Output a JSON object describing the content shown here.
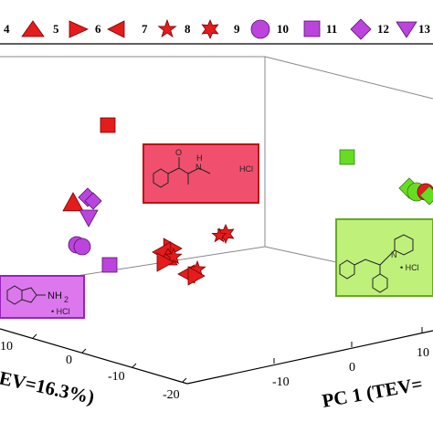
{
  "chart_data": {
    "type": "scatter",
    "projection": "3d",
    "legend_position": "top",
    "legend": [
      {
        "label": "4",
        "marker": "triangle-up",
        "color": "#e51c1c"
      },
      {
        "label": "5",
        "marker": "triangle-right",
        "color": "#e51c1c"
      },
      {
        "label": "6",
        "marker": "triangle-left",
        "color": "#e51c1c"
      },
      {
        "label": "7",
        "marker": "star5",
        "color": "#e51c1c"
      },
      {
        "label": "8",
        "marker": "star6",
        "color": "#e51c1c"
      },
      {
        "label": "9",
        "marker": "circle",
        "color": "#bb44dd"
      },
      {
        "label": "10",
        "marker": "square",
        "color": "#bb44dd"
      },
      {
        "label": "11",
        "marker": "diamond",
        "color": "#bb44dd"
      },
      {
        "label": "12",
        "marker": "triangle-down",
        "color": "#bb44dd"
      },
      {
        "label": "13",
        "marker": "",
        "color": "#bb44dd"
      }
    ],
    "pc2_ticks": [
      "10",
      "0",
      "-10",
      "-20"
    ],
    "pc1_ticks": [
      "-10",
      "0",
      "10"
    ],
    "pc2_label": "EV=16.3%)",
    "pc1_label": "PC 1 (TEV=",
    "groups": [
      {
        "name": "red",
        "color": "#e51c1c"
      },
      {
        "name": "purple",
        "color": "#bb44dd"
      },
      {
        "name": "green",
        "color": "#66dd22"
      }
    ],
    "insets": [
      {
        "name": "methcathinone",
        "labels": [
          "O",
          "N",
          "H",
          "HCl"
        ],
        "color": "#f0506e",
        "border": "#c01010"
      },
      {
        "name": "aminoindane",
        "labels": [
          "NH",
          "2",
          "• HCl"
        ],
        "color": "#dd77ee",
        "border": "#9922bb"
      },
      {
        "name": "piperidine",
        "labels": [
          "N",
          "• HCl"
        ],
        "color": "#bff07a",
        "border": "#66aa22"
      }
    ]
  }
}
